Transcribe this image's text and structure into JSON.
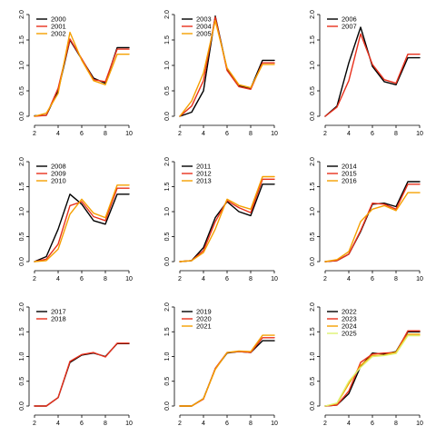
{
  "chart_data": [
    {
      "type": "line",
      "x": [
        2,
        3,
        4,
        5,
        6,
        7,
        8,
        9,
        10
      ],
      "xlim": [
        2,
        10
      ],
      "ylim": [
        0,
        2.0
      ],
      "xticks": [
        "2",
        "4",
        "6",
        "8",
        "10"
      ],
      "yticks": [
        "0.0",
        "0.5",
        "1.0",
        "1.5",
        "2.0"
      ],
      "legend": "top-left",
      "series": [
        {
          "name": "2000",
          "color": "#000000",
          "values": [
            0.01,
            0.02,
            0.5,
            1.5,
            1.12,
            0.75,
            0.65,
            1.35,
            1.35
          ]
        },
        {
          "name": "2001",
          "color": "#e8301c",
          "values": [
            0.0,
            0.02,
            0.55,
            1.52,
            1.13,
            0.72,
            0.68,
            1.32,
            1.32
          ]
        },
        {
          "name": "2002",
          "color": "#f5a000",
          "values": [
            0.0,
            0.06,
            0.45,
            1.65,
            1.1,
            0.7,
            0.62,
            1.22,
            1.22
          ]
        }
      ]
    },
    {
      "type": "line",
      "x": [
        2,
        3,
        4,
        5,
        6,
        7,
        8,
        9,
        10
      ],
      "xlim": [
        2,
        10
      ],
      "ylim": [
        0,
        2.0
      ],
      "xticks": [
        "2",
        "4",
        "6",
        "8",
        "10"
      ],
      "yticks": [
        "0.0",
        "0.5",
        "1.0",
        "1.5",
        "2.0"
      ],
      "legend": "top-left",
      "series": [
        {
          "name": "2003",
          "color": "#000000",
          "values": [
            0.0,
            0.08,
            0.5,
            1.97,
            0.92,
            0.6,
            0.55,
            1.1,
            1.1
          ]
        },
        {
          "name": "2004",
          "color": "#e8301c",
          "values": [
            0.0,
            0.2,
            0.7,
            1.95,
            0.9,
            0.58,
            0.53,
            1.05,
            1.05
          ]
        },
        {
          "name": "2005",
          "color": "#f5a000",
          "values": [
            0.0,
            0.3,
            0.85,
            1.88,
            0.95,
            0.62,
            0.56,
            1.02,
            1.02
          ]
        }
      ]
    },
    {
      "type": "line",
      "x": [
        2,
        3,
        4,
        5,
        6,
        7,
        8,
        9,
        10
      ],
      "xlim": [
        2,
        10
      ],
      "ylim": [
        0,
        2.0
      ],
      "xticks": [
        "2",
        "4",
        "6",
        "8",
        "10"
      ],
      "yticks": [
        "0.0",
        "0.5",
        "1.0",
        "1.5",
        "2.0"
      ],
      "legend": "top-left",
      "series": [
        {
          "name": "2006",
          "color": "#000000",
          "values": [
            0.0,
            0.2,
            1.05,
            1.75,
            0.98,
            0.68,
            0.62,
            1.15,
            1.15
          ]
        },
        {
          "name": "2007",
          "color": "#e8301c",
          "values": [
            0.0,
            0.18,
            0.7,
            1.62,
            1.02,
            0.72,
            0.65,
            1.22,
            1.22
          ]
        }
      ]
    },
    {
      "type": "line",
      "x": [
        2,
        3,
        4,
        5,
        6,
        7,
        8,
        9,
        10
      ],
      "xlim": [
        2,
        10
      ],
      "ylim": [
        0,
        2.0
      ],
      "xticks": [
        "2",
        "4",
        "6",
        "8",
        "10"
      ],
      "yticks": [
        "0.0",
        "0.5",
        "1.0",
        "1.5",
        "2.0"
      ],
      "legend": "top-left",
      "series": [
        {
          "name": "2008",
          "color": "#000000",
          "values": [
            0.0,
            0.1,
            0.65,
            1.35,
            1.15,
            0.82,
            0.75,
            1.35,
            1.35
          ]
        },
        {
          "name": "2009",
          "color": "#e8301c",
          "values": [
            0.0,
            0.05,
            0.35,
            1.12,
            1.2,
            0.9,
            0.82,
            1.47,
            1.47
          ]
        },
        {
          "name": "2010",
          "color": "#f5a000",
          "values": [
            0.0,
            0.02,
            0.25,
            0.95,
            1.25,
            0.97,
            0.88,
            1.53,
            1.53
          ]
        }
      ]
    },
    {
      "type": "line",
      "x": [
        2,
        3,
        4,
        5,
        6,
        7,
        8,
        9,
        10
      ],
      "xlim": [
        2,
        10
      ],
      "ylim": [
        0,
        2.0
      ],
      "xticks": [
        "2",
        "4",
        "6",
        "8",
        "10"
      ],
      "yticks": [
        "0.0",
        "0.5",
        "1.0",
        "1.5",
        "2.0"
      ],
      "legend": "top-left",
      "series": [
        {
          "name": "2011",
          "color": "#000000",
          "values": [
            0.0,
            0.02,
            0.28,
            0.88,
            1.2,
            1.0,
            0.92,
            1.55,
            1.55
          ]
        },
        {
          "name": "2012",
          "color": "#e8301c",
          "values": [
            0.0,
            0.02,
            0.22,
            0.8,
            1.22,
            1.08,
            0.98,
            1.65,
            1.65
          ]
        },
        {
          "name": "2013",
          "color": "#f5a000",
          "values": [
            0.0,
            0.02,
            0.18,
            0.65,
            1.25,
            1.12,
            1.05,
            1.7,
            1.7
          ]
        }
      ]
    },
    {
      "type": "line",
      "x": [
        2,
        3,
        4,
        5,
        6,
        7,
        8,
        9,
        10
      ],
      "xlim": [
        2,
        10
      ],
      "ylim": [
        0,
        2.0
      ],
      "xticks": [
        "2",
        "4",
        "6",
        "8",
        "10"
      ],
      "yticks": [
        "0.0",
        "0.5",
        "1.0",
        "1.5",
        "2.0"
      ],
      "legend": "top-left",
      "series": [
        {
          "name": "2014",
          "color": "#000000",
          "values": [
            0.0,
            0.02,
            0.15,
            0.6,
            1.15,
            1.17,
            1.1,
            1.6,
            1.6
          ]
        },
        {
          "name": "2015",
          "color": "#e8301c",
          "values": [
            0.0,
            0.02,
            0.15,
            0.62,
            1.17,
            1.15,
            1.05,
            1.55,
            1.55
          ]
        },
        {
          "name": "2016",
          "color": "#f5a000",
          "values": [
            0.0,
            0.04,
            0.2,
            0.8,
            1.05,
            1.12,
            1.02,
            1.38,
            1.38
          ]
        }
      ]
    },
    {
      "type": "line",
      "x": [
        2,
        3,
        4,
        5,
        6,
        7,
        8,
        9,
        10
      ],
      "xlim": [
        2,
        10
      ],
      "ylim": [
        0,
        2.0
      ],
      "xticks": [
        "2",
        "4",
        "6",
        "8",
        "10"
      ],
      "yticks": [
        "0.0",
        "0.5",
        "1.0",
        "1.5",
        "2.0"
      ],
      "legend": "top-left",
      "series": [
        {
          "name": "2017",
          "color": "#000000",
          "values": [
            0.0,
            0.0,
            0.17,
            0.88,
            1.03,
            1.07,
            1.0,
            1.26,
            1.26
          ]
        },
        {
          "name": "2018",
          "color": "#e8301c",
          "values": [
            0.0,
            0.0,
            0.17,
            0.9,
            1.04,
            1.08,
            0.99,
            1.27,
            1.27
          ]
        }
      ]
    },
    {
      "type": "line",
      "x": [
        2,
        3,
        4,
        5,
        6,
        7,
        8,
        9,
        10
      ],
      "xlim": [
        2,
        10
      ],
      "ylim": [
        0,
        2.0
      ],
      "xticks": [
        "2",
        "4",
        "6",
        "8",
        "10"
      ],
      "yticks": [
        "0.0",
        "0.5",
        "1.0",
        "1.5",
        "2.0"
      ],
      "legend": "top-left",
      "series": [
        {
          "name": "2019",
          "color": "#000000",
          "values": [
            0.0,
            0.0,
            0.15,
            0.75,
            1.07,
            1.1,
            1.08,
            1.32,
            1.32
          ]
        },
        {
          "name": "2020",
          "color": "#e8301c",
          "values": [
            0.0,
            0.0,
            0.14,
            0.76,
            1.08,
            1.1,
            1.08,
            1.38,
            1.38
          ]
        },
        {
          "name": "2021",
          "color": "#f5a000",
          "values": [
            0.0,
            0.0,
            0.15,
            0.74,
            1.08,
            1.11,
            1.1,
            1.43,
            1.43
          ]
        }
      ]
    },
    {
      "type": "line",
      "x": [
        2,
        3,
        4,
        5,
        6,
        7,
        8,
        9,
        10
      ],
      "xlim": [
        2,
        10
      ],
      "ylim": [
        0,
        2.0
      ],
      "xticks": [
        "2",
        "4",
        "6",
        "8",
        "10"
      ],
      "yticks": [
        "0.0",
        "0.5",
        "1.0",
        "1.5",
        "2.0"
      ],
      "legend": "top-left",
      "series": [
        {
          "name": "2022",
          "color": "#000000",
          "values": [
            0.0,
            0.02,
            0.25,
            0.8,
            1.07,
            1.05,
            1.1,
            1.5,
            1.5
          ]
        },
        {
          "name": "2023",
          "color": "#e8301c",
          "values": [
            0.0,
            0.02,
            0.3,
            0.88,
            1.05,
            1.07,
            1.08,
            1.52,
            1.52
          ]
        },
        {
          "name": "2024",
          "color": "#f5a000",
          "values": [
            0.0,
            0.05,
            0.45,
            0.82,
            1.02,
            1.03,
            1.09,
            1.45,
            1.45
          ]
        },
        {
          "name": "2025",
          "color": "#dff270",
          "values": [
            0.0,
            0.06,
            0.5,
            0.78,
            1.0,
            1.02,
            1.06,
            1.42,
            1.42
          ]
        }
      ]
    }
  ]
}
